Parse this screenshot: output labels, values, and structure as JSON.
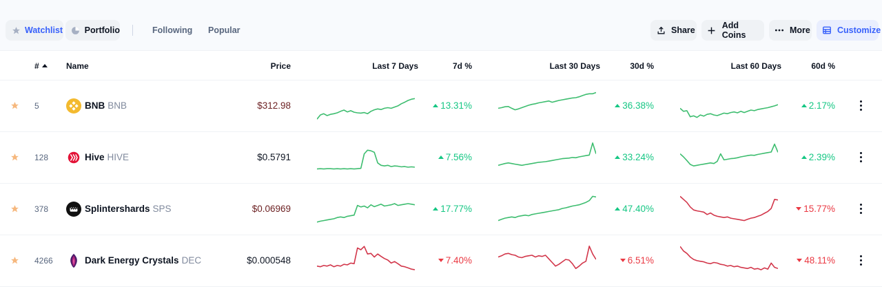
{
  "toolbar": {
    "watchlist": "Watchlist",
    "portfolio": "Portfolio",
    "following": "Following",
    "popular": "Popular",
    "share": "Share",
    "add_coins": "Add Coins",
    "more": "More",
    "customize": "Customize"
  },
  "columns": {
    "rank": "#",
    "name": "Name",
    "price": "Price",
    "last7": "Last 7 Days",
    "pct7": "7d %",
    "last30": "Last 30 Days",
    "pct30": "30d %",
    "last60": "Last 60 Days",
    "pct60": "60d %"
  },
  "colors": {
    "up": "#16c784",
    "down": "#ea3943",
    "spark_up": "#3dbd6f",
    "spark_down": "#d2364a",
    "star": "#f6b87e",
    "accent": "#3861fb"
  },
  "rows": [
    {
      "rank": "5",
      "name": "BNB",
      "symbol": "BNB",
      "price": "$312.98",
      "price_tone": "dn",
      "logo": "bnb-logo",
      "pct7": "13.31%",
      "dir7": "up",
      "pct30": "36.38%",
      "dir30": "up",
      "pct60": "2.17%",
      "dir60": "up",
      "spark7": [
        4,
        18,
        22,
        16,
        20,
        22,
        25,
        30,
        34,
        28,
        32,
        27,
        25,
        24,
        26,
        22,
        30,
        35,
        38,
        36,
        40,
        42,
        40,
        44,
        48,
        55,
        60,
        66,
        70,
        72
      ],
      "spark30": [
        40,
        42,
        45,
        46,
        40,
        35,
        38,
        42,
        46,
        50,
        53,
        55,
        58,
        60,
        62,
        64,
        60,
        63,
        66,
        68,
        70,
        72,
        74,
        75,
        78,
        82,
        86,
        88,
        88,
        92
      ],
      "spark60": [
        40,
        30,
        32,
        12,
        15,
        10,
        18,
        14,
        20,
        22,
        18,
        16,
        20,
        24,
        22,
        26,
        28,
        25,
        30,
        26,
        30,
        34,
        32,
        36,
        38,
        40,
        42,
        45,
        48,
        52
      ]
    },
    {
      "rank": "128",
      "name": "Hive",
      "symbol": "HIVE",
      "price": "$0.5791",
      "price_tone": "nt",
      "logo": "hive-logo",
      "pct7": "7.56%",
      "dir7": "up",
      "pct30": "33.24%",
      "dir30": "up",
      "pct60": "2.39%",
      "dir60": "up",
      "spark7": [
        10,
        11,
        10,
        11,
        11,
        10,
        11,
        10,
        11,
        10,
        11,
        10,
        11,
        12,
        60,
        72,
        70,
        65,
        30,
        22,
        20,
        22,
        18,
        20,
        19,
        17,
        18,
        16,
        17,
        16
      ],
      "spark30": [
        22,
        25,
        28,
        30,
        28,
        26,
        24,
        22,
        24,
        26,
        28,
        30,
        32,
        33,
        34,
        36,
        38,
        40,
        42,
        44,
        45,
        46,
        48,
        47,
        50,
        52,
        54,
        56,
        96,
        60
      ],
      "spark60": [
        60,
        50,
        38,
        25,
        20,
        22,
        24,
        26,
        28,
        30,
        28,
        35,
        60,
        40,
        42,
        44,
        45,
        47,
        50,
        52,
        54,
        56,
        55,
        58,
        60,
        62,
        64,
        66,
        92,
        65
      ]
    },
    {
      "rank": "378",
      "name": "Splintershards",
      "symbol": "SPS",
      "price": "$0.06969",
      "price_tone": "dn",
      "logo": "sps-logo",
      "pct7": "17.77%",
      "dir7": "up",
      "pct30": "47.40%",
      "dir30": "up",
      "pct60": "15.77%",
      "dir60": "down",
      "spark7": [
        5,
        8,
        10,
        12,
        14,
        16,
        20,
        22,
        20,
        24,
        26,
        28,
        60,
        55,
        58,
        52,
        62,
        56,
        60,
        64,
        58,
        60,
        62,
        66,
        60,
        62,
        64,
        66,
        64,
        62
      ],
      "spark30": [
        10,
        14,
        18,
        20,
        22,
        20,
        24,
        26,
        28,
        26,
        30,
        32,
        34,
        36,
        38,
        40,
        42,
        44,
        46,
        50,
        52,
        55,
        58,
        60,
        62,
        66,
        70,
        76,
        90,
        88
      ],
      "spark60": [
        90,
        80,
        70,
        55,
        45,
        42,
        40,
        38,
        30,
        35,
        28,
        24,
        22,
        20,
        22,
        18,
        16,
        14,
        12,
        10,
        14,
        18,
        20,
        24,
        28,
        34,
        40,
        50,
        80,
        78
      ]
    },
    {
      "rank": "4266",
      "name": "Dark Energy Crystals",
      "symbol": "DEC",
      "price": "$0.000548",
      "price_tone": "nt",
      "logo": "dec-logo",
      "pct7": "7.40%",
      "dir7": "down",
      "pct30": "6.51%",
      "dir30": "down",
      "pct60": "48.11%",
      "dir60": "down",
      "spark7": [
        30,
        28,
        32,
        30,
        34,
        28,
        32,
        30,
        36,
        34,
        40,
        38,
        90,
        84,
        95,
        70,
        72,
        60,
        70,
        62,
        55,
        50,
        40,
        45,
        38,
        30,
        28,
        24,
        20,
        18
      ],
      "spark30": [
        60,
        64,
        70,
        72,
        68,
        66,
        60,
        58,
        62,
        64,
        66,
        60,
        64,
        62,
        66,
        54,
        42,
        30,
        36,
        44,
        52,
        50,
        38,
        22,
        30,
        40,
        46,
        96,
        70,
        52
      ],
      "spark60": [
        95,
        80,
        72,
        60,
        52,
        48,
        46,
        44,
        40,
        38,
        42,
        40,
        36,
        34,
        30,
        32,
        28,
        30,
        26,
        24,
        22,
        26,
        20,
        22,
        18,
        24,
        20,
        40,
        26,
        22
      ]
    }
  ]
}
